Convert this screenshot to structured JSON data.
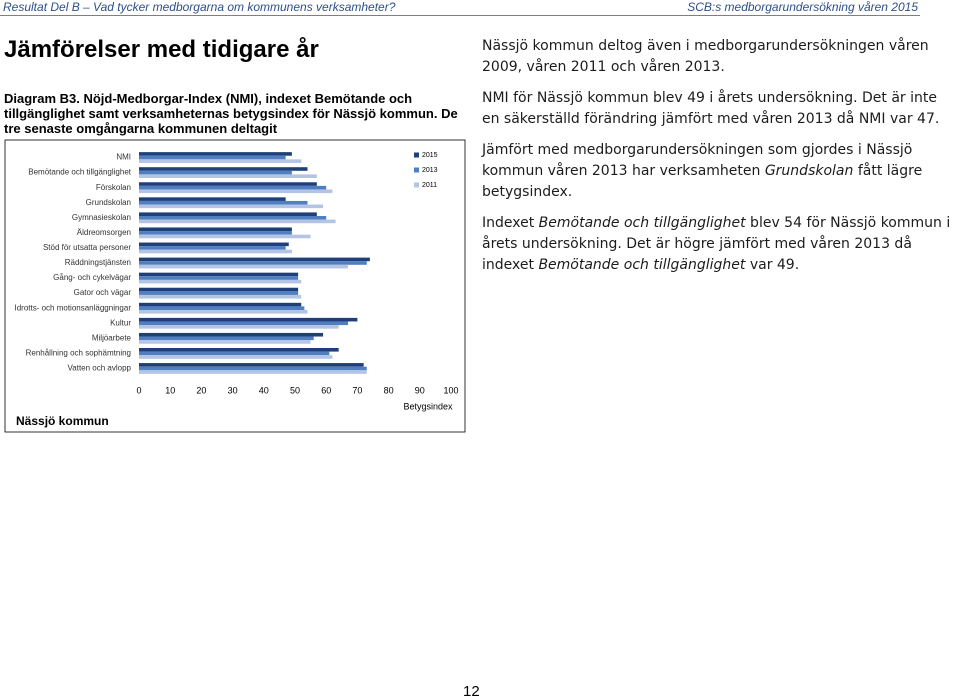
{
  "header": {
    "left": "Resultat Del B – Vad tycker medborgarna om kommunens verksamheter?",
    "right": "SCB:s medborgarundersökning våren 2015"
  },
  "title": "Jämförelser med tidigare år",
  "caption": "Diagram B3. Nöjd-Medborgar-Index (NMI), indexet Bemötande och tillgänglighet samt verksamheternas betygsindex för Nässjö kommun. De tre senaste omgångarna kommunen deltagit",
  "chart_data": {
    "type": "hbar",
    "note": "Nässjö kommun",
    "x_label": "Betygsindex",
    "categories": [
      "NMI",
      "Bemötande och tillgänglighet",
      "Förskolan",
      "Grundskolan",
      "Gymnasieskolan",
      "Äldreomsorgen",
      "Stöd för utsatta personer",
      "Räddningstjänsten",
      "Gång- och cykelvägar",
      "Gator och vägar",
      "Idrotts- och motionsanläggningar",
      "Kultur",
      "Miljöarbete",
      "Renhållning och sophämtning",
      "Vatten och avlopp"
    ],
    "series": [
      {
        "name": "2015",
        "color": "#1f3f7a",
        "values": [
          49,
          54,
          57,
          47,
          57,
          49,
          48,
          74,
          51,
          51,
          52,
          70,
          59,
          64,
          72
        ]
      },
      {
        "name": "2013",
        "color": "#4f7fc0",
        "values": [
          47,
          49,
          60,
          54,
          60,
          49,
          47,
          73,
          51,
          51,
          53,
          67,
          56,
          61,
          73
        ]
      },
      {
        "name": "2011",
        "color": "#b4c4e4",
        "values": [
          52,
          57,
          62,
          59,
          63,
          55,
          49,
          67,
          52,
          52,
          54,
          64,
          55,
          62,
          73
        ]
      }
    ],
    "xlim": [
      0,
      100
    ],
    "xticks": [
      0,
      10,
      20,
      30,
      40,
      50,
      60,
      70,
      80,
      90,
      100
    ],
    "grid": false
  },
  "paragraphs": [
    [
      {
        "text": "Nässjö kommun deltog även i medborgarundersökningen våren 2009, våren 2011 och våren 2013."
      }
    ],
    [
      {
        "text": "NMI för Nässjö kommun blev 49 i årets undersökning. Det är inte en säkerställd förändring jämfört med våren 2013 då NMI var 47."
      }
    ],
    [
      {
        "text": "Jämfört med medborgarundersökningen som gjordes i Nässjö kommun våren 2013 har verksamheten "
      },
      {
        "text": "Grundskolan",
        "italic": true
      },
      {
        "text": " fått lägre betygsindex."
      }
    ],
    [
      {
        "text": "Indexet "
      },
      {
        "text": "Bemötande och tillgänglighet",
        "italic": true
      },
      {
        "text": " blev 54 för Nässjö kommun i årets undersökning. Det är högre jämfört med våren 2013 då indexet "
      },
      {
        "text": "Bemötande och tillgänglighet",
        "italic": true
      },
      {
        "text": " var 49."
      }
    ]
  ],
  "page_number": "12"
}
